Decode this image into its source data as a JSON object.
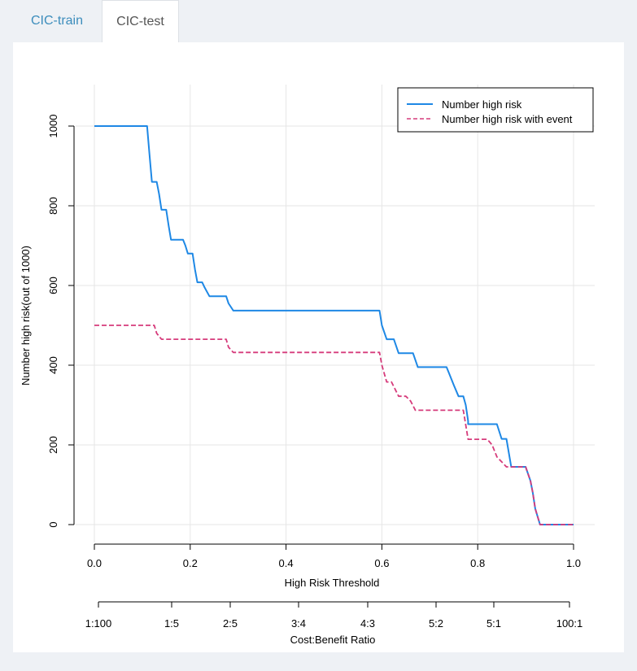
{
  "tabs": [
    {
      "label": "CIC-train",
      "active": false
    },
    {
      "label": "CIC-test",
      "active": true
    }
  ],
  "chart_data": {
    "type": "line",
    "xlabel": "High Risk Threshold",
    "ylabel": "Number high risk(out of 1000)",
    "xlim": [
      0,
      1
    ],
    "ylim": [
      0,
      1000
    ],
    "x_ticks": [
      "0.0",
      "0.2",
      "0.4",
      "0.6",
      "0.8",
      "1.0"
    ],
    "y_ticks": [
      "0",
      "200",
      "400",
      "600",
      "800",
      "1000"
    ],
    "cost_benefit_axis": {
      "label": "Cost:Benefit Ratio",
      "ticks": [
        "1:100",
        "1:5",
        "2:5",
        "3:4",
        "4:3",
        "5:2",
        "5:1",
        "100:1"
      ]
    },
    "grid": true,
    "legend_position": "top-right",
    "series": [
      {
        "name": "Number high risk",
        "color": "#1e88e5",
        "style": "solid",
        "points": [
          [
            0,
            1000
          ],
          [
            0.11,
            1000
          ],
          [
            0.115,
            930
          ],
          [
            0.12,
            860
          ],
          [
            0.13,
            860
          ],
          [
            0.135,
            830
          ],
          [
            0.14,
            790
          ],
          [
            0.15,
            790
          ],
          [
            0.155,
            750
          ],
          [
            0.16,
            715
          ],
          [
            0.185,
            715
          ],
          [
            0.19,
            700
          ],
          [
            0.195,
            680
          ],
          [
            0.205,
            680
          ],
          [
            0.21,
            640
          ],
          [
            0.215,
            608
          ],
          [
            0.225,
            608
          ],
          [
            0.23,
            595
          ],
          [
            0.24,
            573
          ],
          [
            0.275,
            573
          ],
          [
            0.28,
            555
          ],
          [
            0.29,
            537
          ],
          [
            0.595,
            537
          ],
          [
            0.6,
            500
          ],
          [
            0.61,
            465
          ],
          [
            0.625,
            465
          ],
          [
            0.635,
            430
          ],
          [
            0.665,
            430
          ],
          [
            0.675,
            395
          ],
          [
            0.735,
            395
          ],
          [
            0.74,
            380
          ],
          [
            0.75,
            350
          ],
          [
            0.76,
            322
          ],
          [
            0.77,
            322
          ],
          [
            0.775,
            300
          ],
          [
            0.78,
            260
          ],
          [
            0.78,
            252
          ],
          [
            0.84,
            252
          ],
          [
            0.85,
            215
          ],
          [
            0.86,
            215
          ],
          [
            0.87,
            145
          ],
          [
            0.9,
            145
          ],
          [
            0.91,
            110
          ],
          [
            0.915,
            80
          ],
          [
            0.92,
            40
          ],
          [
            0.93,
            0
          ],
          [
            1.0,
            0
          ]
        ]
      },
      {
        "name": "Number high risk with event",
        "color": "#d63b7b",
        "style": "dashed",
        "points": [
          [
            0,
            500
          ],
          [
            0.125,
            500
          ],
          [
            0.13,
            480
          ],
          [
            0.14,
            465
          ],
          [
            0.275,
            465
          ],
          [
            0.28,
            445
          ],
          [
            0.29,
            432
          ],
          [
            0.595,
            432
          ],
          [
            0.6,
            400
          ],
          [
            0.61,
            358
          ],
          [
            0.62,
            358
          ],
          [
            0.635,
            322
          ],
          [
            0.65,
            322
          ],
          [
            0.66,
            310
          ],
          [
            0.67,
            287
          ],
          [
            0.77,
            287
          ],
          [
            0.775,
            250
          ],
          [
            0.78,
            214
          ],
          [
            0.82,
            214
          ],
          [
            0.83,
            200
          ],
          [
            0.84,
            170
          ],
          [
            0.86,
            145
          ],
          [
            0.9,
            145
          ],
          [
            0.91,
            110
          ],
          [
            0.915,
            80
          ],
          [
            0.92,
            40
          ],
          [
            0.93,
            0
          ],
          [
            1.0,
            0
          ]
        ]
      }
    ]
  }
}
